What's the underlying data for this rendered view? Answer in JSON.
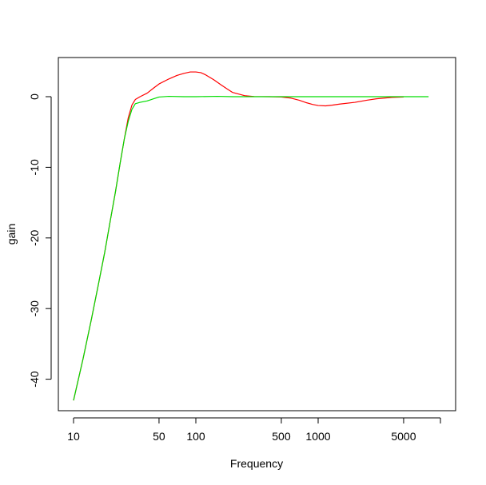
{
  "chart_data": {
    "type": "line",
    "title": "",
    "xlabel": "Frequency",
    "ylabel": "gain",
    "x_scale": "log",
    "xlim": [
      10,
      10000
    ],
    "ylim": [
      -44.5,
      5.8
    ],
    "x_ticks": [
      10,
      50,
      100,
      500,
      1000,
      5000
    ],
    "x_tick_labels": [
      "10",
      "50",
      "100",
      "500",
      "1000",
      "5000"
    ],
    "y_ticks": [
      0,
      -10,
      -20,
      -30,
      -40
    ],
    "y_tick_labels": [
      "0",
      "-10",
      "-20",
      "-30",
      "-40"
    ],
    "grid": false,
    "legend": "none",
    "series": [
      {
        "color": "#ff0000",
        "points": [
          [
            10,
            -43.0
          ],
          [
            12,
            -37.0
          ],
          [
            14,
            -31.5
          ],
          [
            16,
            -26.5
          ],
          [
            18,
            -22.0
          ],
          [
            20,
            -17.5
          ],
          [
            22,
            -13.5
          ],
          [
            24,
            -9.5
          ],
          [
            26,
            -6.0
          ],
          [
            28,
            -3.0
          ],
          [
            30,
            -1.2
          ],
          [
            32,
            -0.4
          ],
          [
            35,
            0.0
          ],
          [
            40,
            0.5
          ],
          [
            45,
            1.2
          ],
          [
            50,
            1.8
          ],
          [
            60,
            2.5
          ],
          [
            70,
            3.0
          ],
          [
            80,
            3.3
          ],
          [
            90,
            3.5
          ],
          [
            100,
            3.5
          ],
          [
            110,
            3.4
          ],
          [
            120,
            3.1
          ],
          [
            140,
            2.4
          ],
          [
            160,
            1.7
          ],
          [
            180,
            1.1
          ],
          [
            200,
            0.6
          ],
          [
            250,
            0.15
          ],
          [
            300,
            0.02
          ],
          [
            400,
            0.0
          ],
          [
            500,
            -0.05
          ],
          [
            600,
            -0.2
          ],
          [
            700,
            -0.5
          ],
          [
            800,
            -0.85
          ],
          [
            900,
            -1.1
          ],
          [
            1000,
            -1.25
          ],
          [
            1150,
            -1.3
          ],
          [
            1300,
            -1.2
          ],
          [
            1500,
            -1.05
          ],
          [
            2000,
            -0.8
          ],
          [
            2500,
            -0.5
          ],
          [
            3000,
            -0.3
          ],
          [
            4000,
            -0.1
          ],
          [
            5000,
            -0.05
          ]
        ]
      },
      {
        "color": "#00dd00",
        "points": [
          [
            10,
            -43.0
          ],
          [
            12,
            -37.0
          ],
          [
            14,
            -31.5
          ],
          [
            16,
            -26.5
          ],
          [
            18,
            -22.0
          ],
          [
            20,
            -17.5
          ],
          [
            22,
            -13.5
          ],
          [
            24,
            -9.5
          ],
          [
            26,
            -6.0
          ],
          [
            28,
            -3.5
          ],
          [
            30,
            -1.8
          ],
          [
            32,
            -1.0
          ],
          [
            35,
            -0.8
          ],
          [
            40,
            -0.6
          ],
          [
            45,
            -0.3
          ],
          [
            50,
            -0.05
          ],
          [
            60,
            0.05
          ],
          [
            80,
            0.0
          ],
          [
            100,
            0.0
          ],
          [
            150,
            0.05
          ],
          [
            200,
            0.0
          ],
          [
            500,
            0.0
          ],
          [
            1000,
            0.0
          ],
          [
            2000,
            0.0
          ],
          [
            5000,
            0.0
          ],
          [
            8000,
            0.0
          ]
        ]
      }
    ]
  },
  "frame_color": "#000000"
}
